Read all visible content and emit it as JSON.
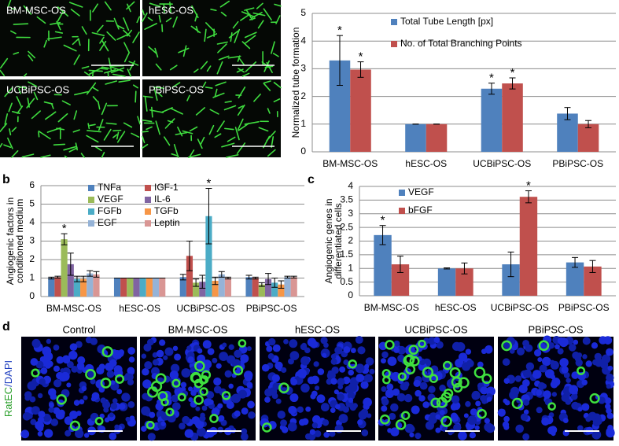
{
  "panel_labels": [
    "a",
    "b",
    "c",
    "d"
  ],
  "tube_images": [
    "BM-MSC-OS",
    "hESC-OS",
    "UCBiPSC-OS",
    "PBiPSC-OS"
  ],
  "stain_images": {
    "titles": [
      "Control",
      "BM-MSC-OS",
      "hESC-OS",
      "UCBiPSC-OS",
      "PBiPSC-OS"
    ],
    "stain_label": [
      "RatEC",
      "/DAPI"
    ]
  },
  "chart_data": [
    {
      "type": "bar",
      "ylabel": [
        "Normalized tube formation"
      ],
      "categories": [
        "BM-MSC-OS",
        "hESC-OS",
        "UCBiPSC-OS",
        "PBiPSC-OS"
      ],
      "ylim": [
        0,
        5
      ],
      "yticks": [
        0,
        1,
        2,
        3,
        4,
        5
      ],
      "grid": true,
      "legend_columns": 1,
      "series": [
        {
          "name": "Total Tube Length [px]",
          "color": "#4f81bd",
          "values": [
            3.3,
            1,
            2.28,
            1.38
          ],
          "errors": [
            0.9,
            0,
            0.2,
            0.22
          ],
          "significance": [
            "*",
            null,
            "*",
            null
          ]
        },
        {
          "name": "No. of Total Branching Points",
          "color": "#c0504d",
          "values": [
            2.97,
            1,
            2.47,
            1.0
          ],
          "errors": [
            0.28,
            0,
            0.2,
            0.13
          ],
          "significance": [
            "*",
            null,
            "*",
            null
          ]
        }
      ]
    },
    {
      "type": "bar",
      "ylabel": [
        "Angiogenic factors in",
        "conditioned medium"
      ],
      "categories": [
        "BM-MSC-OS",
        "hESC-OS",
        "UCBiPSC-OS",
        "PBiPSC-OS"
      ],
      "ylim": [
        0,
        6
      ],
      "yticks": [
        0,
        1,
        2,
        3,
        4,
        5,
        6
      ],
      "grid": true,
      "legend_columns": 2,
      "series": [
        {
          "name": "TNFa",
          "color": "#4f81bd",
          "values": [
            1.0,
            1,
            1.05,
            1.05
          ],
          "errors": [
            0.05,
            0,
            0.15,
            0.1
          ],
          "significance": [
            null,
            null,
            null,
            null
          ]
        },
        {
          "name": "IGF-1",
          "color": "#c0504d",
          "values": [
            1.05,
            1,
            2.2,
            1.0
          ],
          "errors": [
            0.05,
            0,
            0.8,
            0.05
          ],
          "significance": [
            null,
            null,
            null,
            null
          ]
        },
        {
          "name": "VEGF",
          "color": "#9bbb59",
          "values": [
            3.1,
            1,
            0.75,
            0.65
          ],
          "errors": [
            0.3,
            0,
            0.2,
            0.1
          ],
          "significance": [
            "*",
            null,
            null,
            null
          ]
        },
        {
          "name": "IL-6",
          "color": "#8064a2",
          "values": [
            1.75,
            1,
            0.8,
            0.95
          ],
          "errors": [
            0.6,
            0,
            0.35,
            0.3
          ],
          "significance": [
            null,
            null,
            null,
            null
          ]
        },
        {
          "name": "FGFb",
          "color": "#4bacc6",
          "values": [
            0.95,
            1,
            4.35,
            0.75
          ],
          "errors": [
            0.15,
            0,
            1.5,
            0.25
          ],
          "significance": [
            null,
            null,
            "*",
            null
          ]
        },
        {
          "name": "TGFb",
          "color": "#f79646",
          "values": [
            0.95,
            1,
            0.85,
            0.65
          ],
          "errors": [
            0.15,
            0,
            0.2,
            0.2
          ],
          "significance": [
            null,
            null,
            null,
            null
          ]
        },
        {
          "name": "EGF",
          "color": "#95b3d7",
          "values": [
            1.25,
            1,
            1.2,
            1.05
          ],
          "errors": [
            0.15,
            0,
            0.15,
            0.05
          ],
          "significance": [
            null,
            null,
            null,
            null
          ]
        },
        {
          "name": "Leptin",
          "color": "#d99694",
          "values": [
            1.2,
            1,
            1.0,
            1.05
          ],
          "errors": [
            0.15,
            0,
            0.05,
            0.05
          ],
          "significance": [
            null,
            null,
            null,
            null
          ]
        }
      ]
    },
    {
      "type": "bar",
      "ylabel": [
        "Angiogenic genes in",
        "differentiated cells"
      ],
      "categories": [
        "BM-MSC-OS",
        "hESC-OS",
        "UCBiPSC-OS",
        "PBiPSC-OS"
      ],
      "ylim": [
        0,
        4
      ],
      "yticks": [
        0,
        0.5,
        1,
        1.5,
        2,
        2.5,
        3,
        3.5,
        4
      ],
      "grid": true,
      "legend_columns": 1,
      "series": [
        {
          "name": "VEGF",
          "color": "#4f81bd",
          "values": [
            2.22,
            1.0,
            1.15,
            1.22
          ],
          "errors": [
            0.35,
            0.02,
            0.45,
            0.18
          ],
          "significance": [
            "*",
            null,
            null,
            null
          ]
        },
        {
          "name": "bFGF",
          "color": "#c0504d",
          "values": [
            1.15,
            1.0,
            3.62,
            1.07
          ],
          "errors": [
            0.3,
            0.2,
            0.22,
            0.22
          ],
          "significance": [
            null,
            null,
            "*",
            null
          ]
        }
      ]
    }
  ]
}
